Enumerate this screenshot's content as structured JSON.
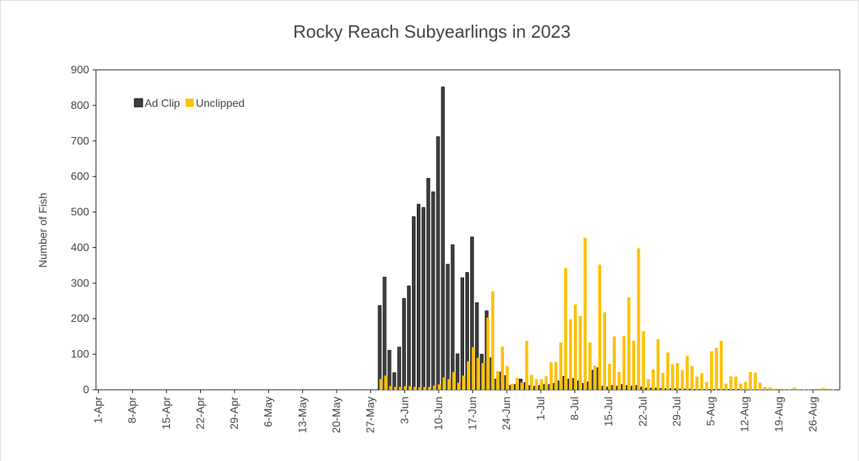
{
  "chart_data": {
    "type": "bar",
    "title": "Rocky Reach Subyearlings in 2023",
    "y_label": "Number of Fish",
    "categories": [
      "1-Apr",
      null,
      null,
      null,
      null,
      null,
      null,
      "8-Apr",
      null,
      null,
      null,
      null,
      null,
      null,
      "15-Apr",
      null,
      null,
      null,
      null,
      null,
      null,
      "22-Apr",
      null,
      null,
      null,
      null,
      null,
      null,
      "29-Apr",
      null,
      null,
      null,
      null,
      null,
      null,
      "6-May",
      null,
      null,
      null,
      null,
      null,
      null,
      "13-May",
      null,
      null,
      null,
      null,
      null,
      null,
      "20-May",
      null,
      null,
      null,
      null,
      null,
      null,
      "27-May",
      null,
      null,
      null,
      null,
      null,
      null,
      "3-Jun",
      null,
      null,
      null,
      null,
      null,
      null,
      "10-Jun",
      null,
      null,
      null,
      null,
      null,
      null,
      "17-Jun",
      null,
      null,
      null,
      null,
      null,
      null,
      "24-Jun",
      null,
      null,
      null,
      null,
      null,
      null,
      "1-Jul",
      null,
      null,
      null,
      null,
      null,
      null,
      "8-Jul",
      null,
      null,
      null,
      null,
      null,
      null,
      "15-Jul",
      null,
      null,
      null,
      null,
      null,
      null,
      "22-Jul",
      null,
      null,
      null,
      null,
      null,
      null,
      "29-Jul",
      null,
      null,
      null,
      null,
      null,
      null,
      "5-Aug",
      null,
      null,
      null,
      null,
      null,
      null,
      "12-Aug",
      null,
      null,
      null,
      null,
      null,
      null,
      "19-Aug",
      null,
      null,
      null,
      null,
      null,
      null,
      "26-Aug",
      null,
      null,
      null,
      null,
      null
    ],
    "series": [
      {
        "name": "Ad Clip",
        "color": "#404040",
        "values": [
          0,
          0,
          0,
          0,
          0,
          0,
          0,
          0,
          0,
          0,
          0,
          0,
          0,
          0,
          0,
          0,
          0,
          0,
          0,
          0,
          0,
          0,
          0,
          0,
          0,
          0,
          0,
          0,
          0,
          0,
          0,
          0,
          0,
          0,
          0,
          0,
          0,
          0,
          0,
          0,
          0,
          0,
          0,
          0,
          0,
          0,
          0,
          0,
          0,
          0,
          0,
          0,
          0,
          0,
          0,
          0,
          0,
          0,
          237,
          317,
          111,
          48,
          120,
          257,
          292,
          487,
          522,
          513,
          595,
          557,
          712,
          852,
          353,
          408,
          101,
          315,
          330,
          430,
          245,
          100,
          222,
          90,
          30,
          50,
          40,
          12,
          15,
          30,
          20,
          12,
          10,
          12,
          15,
          15,
          18,
          25,
          38,
          30,
          32,
          25,
          18,
          22,
          55,
          62,
          10,
          8,
          12,
          10,
          15,
          12,
          10,
          12,
          8,
          5,
          5,
          5,
          4,
          3,
          3,
          3,
          2,
          2,
          2,
          1,
          1,
          1,
          1,
          1,
          1,
          1,
          1,
          1,
          1,
          0,
          0,
          0,
          0,
          0,
          0,
          0,
          0,
          0,
          0,
          0,
          0,
          0,
          0,
          0,
          0,
          0,
          0,
          0,
          0
        ]
      },
      {
        "name": "Unclipped",
        "color": "#ffc000",
        "values": [
          0,
          0,
          0,
          0,
          0,
          0,
          0,
          0,
          0,
          0,
          0,
          0,
          0,
          0,
          0,
          0,
          0,
          0,
          0,
          0,
          0,
          0,
          0,
          0,
          0,
          0,
          0,
          0,
          0,
          0,
          0,
          0,
          0,
          0,
          0,
          0,
          0,
          0,
          0,
          0,
          0,
          0,
          0,
          0,
          0,
          0,
          0,
          0,
          0,
          0,
          0,
          0,
          0,
          0,
          0,
          0,
          0,
          0,
          30,
          40,
          10,
          8,
          8,
          10,
          10,
          8,
          7,
          8,
          8,
          12,
          15,
          35,
          30,
          50,
          20,
          40,
          80,
          120,
          90,
          75,
          203,
          277,
          52,
          122,
          67,
          17,
          33,
          20,
          137,
          42,
          30,
          30,
          38,
          77,
          78,
          133,
          342,
          198,
          240,
          208,
          428,
          133,
          68,
          352,
          218,
          73,
          150,
          50,
          152,
          260,
          138,
          398,
          165,
          30,
          57,
          142,
          47,
          105,
          72,
          75,
          55,
          95,
          67,
          37,
          47,
          22,
          108,
          118,
          138,
          17,
          38,
          37,
          17,
          22,
          50,
          48,
          20,
          8,
          7,
          3,
          3,
          2,
          1,
          6,
          2,
          1,
          1,
          2,
          3,
          5,
          3,
          1,
          0
        ]
      }
    ],
    "ylim": [
      0,
      900
    ],
    "yticks": [
      0,
      100,
      200,
      300,
      400,
      500,
      600,
      700,
      800,
      900
    ],
    "legend": "upper left"
  }
}
